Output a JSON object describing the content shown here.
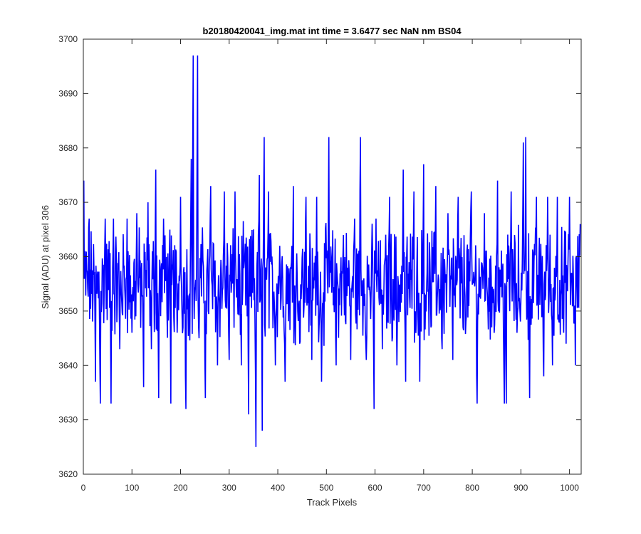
{
  "chart_data": {
    "type": "line",
    "title": "b20180420041_img.mat int time = 3.6477 sec  NaN nm BS04",
    "xlabel": "Track Pixels",
    "ylabel": "Signal (ADU) at pixel 306",
    "xlim": [
      0,
      1024
    ],
    "ylim": [
      3620,
      3700
    ],
    "xticks": [
      0,
      100,
      200,
      300,
      400,
      500,
      600,
      700,
      800,
      900,
      1000
    ],
    "yticks": [
      3620,
      3630,
      3640,
      3650,
      3660,
      3670,
      3680,
      3690,
      3700
    ],
    "grid": false,
    "box": true,
    "series": [
      {
        "color": "#0000ff",
        "x": [
          1,
          12,
          25,
          35,
          45,
          57,
          62,
          75,
          90,
          100,
          110,
          124,
          133,
          140,
          149,
          155,
          165,
          180,
          193,
          200,
          211,
          222,
          226,
          235,
          238,
          251,
          262,
          276,
          290,
          300,
          312,
          325,
          340,
          350,
          355,
          362,
          368,
          372,
          381,
          395,
          404,
          415,
          432,
          445,
          458,
          470,
          480,
          490,
          505,
          520,
          535,
          550,
          558,
          570,
          582,
          598,
          602,
          615,
          630,
          645,
          658,
          663,
          680,
          692,
          700,
          715,
          725,
          738,
          750,
          760,
          771,
          781,
          798,
          810,
          825,
          840,
          852,
          866,
          870,
          880,
          892,
          905,
          910,
          918,
          932,
          947,
          955,
          965,
          975,
          988,
          1000,
          1012,
          1022
        ],
        "y": [
          3674,
          3667,
          3637,
          3633,
          3667,
          3633,
          3667,
          3643,
          3667,
          3646,
          3668,
          3636,
          3670,
          3643,
          3676,
          3634,
          3667,
          3633,
          3646,
          3671,
          3632,
          3678,
          3697,
          3697,
          3645,
          3634,
          3673,
          3640,
          3672,
          3641,
          3672,
          3640,
          3631,
          3665,
          3625,
          3675,
          3628,
          3682,
          3672,
          3640,
          3662,
          3637,
          3673,
          3644,
          3671,
          3641,
          3671,
          3637,
          3682,
          3640,
          3664,
          3641,
          3667,
          3682,
          3641,
          3632,
          3667,
          3643,
          3671,
          3640,
          3676,
          3637,
          3672,
          3637,
          3677,
          3647,
          3673,
          3643,
          3668,
          3641,
          3671,
          3647,
          3672,
          3633,
          3668,
          3647,
          3674,
          3633,
          3633,
          3672,
          3646,
          3681,
          3682,
          3634,
          3671,
          3638,
          3671,
          3640,
          3671,
          3646,
          3671,
          3640,
          3666
        ]
      }
    ]
  }
}
